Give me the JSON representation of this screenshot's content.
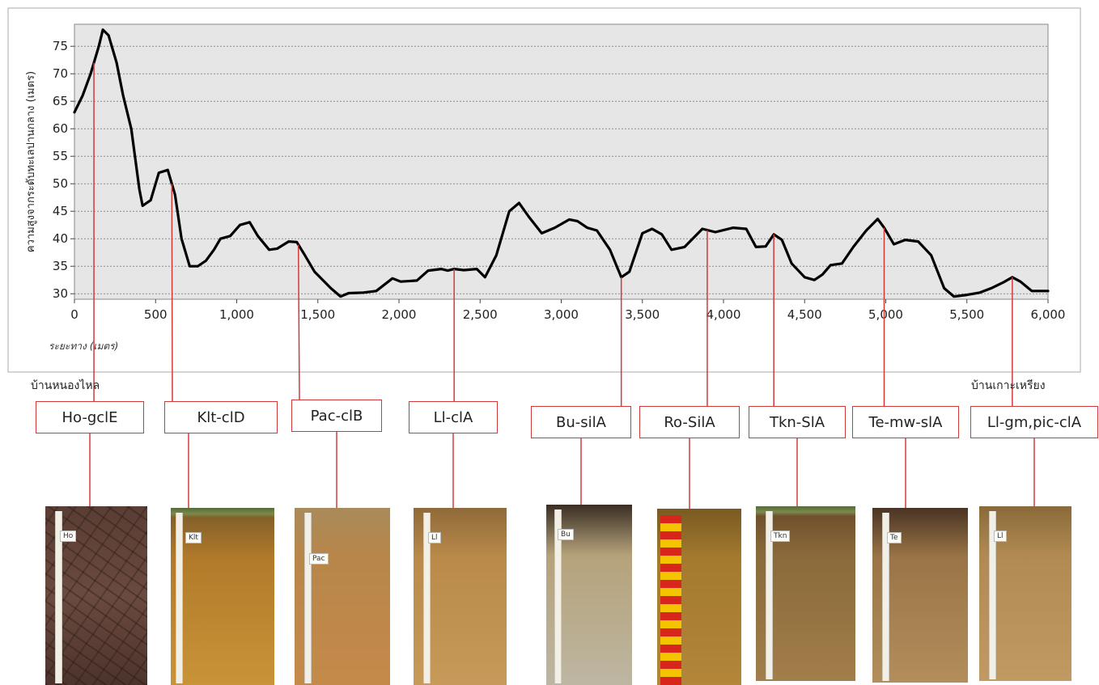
{
  "chart_data": {
    "type": "line",
    "ylabel": "ความสูงจากระดับทะเลปานกลาง (เมตร)",
    "xlabel": "ระยะทาง (เมตร)",
    "xlim": [
      0,
      6000
    ],
    "ylim": [
      29,
      79
    ],
    "x_ticks": [
      0,
      500,
      1000,
      1500,
      2000,
      2500,
      3000,
      3500,
      4000,
      4500,
      5000,
      5500,
      6000
    ],
    "x_tick_labels": [
      "0",
      "500",
      "1,000",
      "1,500",
      "2,000",
      "2,500",
      "3,000",
      "3,500",
      "4,000",
      "4,500",
      "5,000",
      "5,500",
      "6,000"
    ],
    "y_ticks": [
      30,
      35,
      40,
      45,
      50,
      55,
      60,
      65,
      70,
      75
    ],
    "y_tick_labels": [
      "30",
      "35",
      "40",
      "45",
      "50",
      "55",
      "60",
      "65",
      "70",
      "75"
    ],
    "grid": true,
    "series": [
      {
        "points": [
          [
            0,
            63
          ],
          [
            50,
            66
          ],
          [
            100,
            70
          ],
          [
            150,
            75
          ],
          [
            175,
            78
          ],
          [
            210,
            77
          ],
          [
            260,
            72
          ],
          [
            300,
            66
          ],
          [
            350,
            60
          ],
          [
            400,
            49
          ],
          [
            420,
            46
          ],
          [
            470,
            47
          ],
          [
            520,
            52
          ],
          [
            575,
            52.5
          ],
          [
            620,
            48
          ],
          [
            660,
            40
          ],
          [
            710,
            35
          ],
          [
            760,
            35
          ],
          [
            810,
            36
          ],
          [
            860,
            38
          ],
          [
            900,
            40
          ],
          [
            960,
            40.5
          ],
          [
            1020,
            42.5
          ],
          [
            1080,
            43
          ],
          [
            1130,
            40.5
          ],
          [
            1200,
            38
          ],
          [
            1250,
            38.2
          ],
          [
            1320,
            39.5
          ],
          [
            1370,
            39.4
          ],
          [
            1420,
            37
          ],
          [
            1480,
            34
          ],
          [
            1580,
            31
          ],
          [
            1640,
            29.5
          ],
          [
            1690,
            30.1
          ],
          [
            1780,
            30.2
          ],
          [
            1860,
            30.5
          ],
          [
            1960,
            32.8
          ],
          [
            2010,
            32.2
          ],
          [
            2110,
            32.4
          ],
          [
            2180,
            34.2
          ],
          [
            2260,
            34.5
          ],
          [
            2300,
            34.2
          ],
          [
            2340,
            34.5
          ],
          [
            2400,
            34.3
          ],
          [
            2480,
            34.5
          ],
          [
            2530,
            33
          ],
          [
            2600,
            37
          ],
          [
            2680,
            45
          ],
          [
            2740,
            46.5
          ],
          [
            2800,
            44
          ],
          [
            2880,
            41
          ],
          [
            2960,
            42
          ],
          [
            3050,
            43.5
          ],
          [
            3100,
            43.2
          ],
          [
            3160,
            42
          ],
          [
            3220,
            41.5
          ],
          [
            3300,
            38
          ],
          [
            3370,
            33
          ],
          [
            3420,
            34
          ],
          [
            3500,
            41
          ],
          [
            3560,
            41.8
          ],
          [
            3620,
            40.8
          ],
          [
            3680,
            38
          ],
          [
            3760,
            38.5
          ],
          [
            3870,
            41.8
          ],
          [
            3950,
            41.2
          ],
          [
            4060,
            42
          ],
          [
            4140,
            41.8
          ],
          [
            4200,
            38.5
          ],
          [
            4260,
            38.6
          ],
          [
            4310,
            40.8
          ],
          [
            4360,
            39.8
          ],
          [
            4420,
            35.5
          ],
          [
            4500,
            33
          ],
          [
            4560,
            32.5
          ],
          [
            4610,
            33.5
          ],
          [
            4660,
            35.2
          ],
          [
            4730,
            35.5
          ],
          [
            4800,
            38.5
          ],
          [
            4880,
            41.5
          ],
          [
            4950,
            43.6
          ],
          [
            4990,
            42
          ],
          [
            5050,
            39
          ],
          [
            5120,
            39.8
          ],
          [
            5200,
            39.5
          ],
          [
            5280,
            37
          ],
          [
            5360,
            31
          ],
          [
            5420,
            29.5
          ],
          [
            5500,
            29.8
          ],
          [
            5580,
            30.2
          ],
          [
            5650,
            31
          ],
          [
            5720,
            32
          ],
          [
            5780,
            33
          ],
          [
            5830,
            32.2
          ],
          [
            5900,
            30.5
          ],
          [
            5980,
            30.5
          ],
          [
            6000,
            30.5
          ]
        ]
      }
    ]
  },
  "end_labels": {
    "left": "บ้านหนองไหล",
    "right": "บ้านเกาะเหรียง"
  },
  "soil_series": [
    {
      "code": "Ho-gclE",
      "x": 120,
      "tag": "Ho",
      "colors": [
        "#5a3d33",
        "#6b4a3f",
        "#4c332c"
      ],
      "style": "cracked"
    },
    {
      "code": "Klt-clD",
      "x": 600,
      "tag": "Klt",
      "colors": [
        "#7a5a2a",
        "#b07a2a",
        "#c99438"
      ],
      "style": "grass"
    },
    {
      "code": "Pac-clB",
      "x": 1380,
      "tag": "Pac",
      "colors": [
        "#a98a5a",
        "#b8864a",
        "#c48a4a"
      ],
      "style": "plain"
    },
    {
      "code": "Ll-clA",
      "x": 2340,
      "tag": "Ll",
      "colors": [
        "#8f6a3a",
        "#b98a4a",
        "#c79a5a"
      ],
      "style": "plain"
    },
    {
      "code": "Bu-silA",
      "x": 3370,
      "tag": "Bu",
      "colors": [
        "#3a2e24",
        "#b5a27a",
        "#bdb6a2"
      ],
      "style": "plain"
    },
    {
      "code": "Ro-SilA",
      "x": 3900,
      "tag": "",
      "colors": [
        "#7a5a22",
        "#a37a2e",
        "#b3863a"
      ],
      "style": "checker"
    },
    {
      "code": "Tkn-SlA",
      "x": 4310,
      "tag": "Tkn",
      "colors": [
        "#6a4a2a",
        "#8a6a3a",
        "#a27e4a"
      ],
      "style": "grass"
    },
    {
      "code": "Te-mw-slA",
      "x": 4990,
      "tag": "Te",
      "colors": [
        "#4a3424",
        "#9a7446",
        "#b38e5c"
      ],
      "style": "plain"
    },
    {
      "code": "Ll-gm,pic-clA",
      "x": 5780,
      "tag": "Ll",
      "colors": [
        "#8a6a3a",
        "#b08a52",
        "#c09a62"
      ],
      "style": "plain"
    }
  ],
  "colors": {
    "line": "#000000",
    "plot_bg": "#e6e6e6",
    "grid": "#8c8c8c",
    "connector": "#d23a3a"
  }
}
